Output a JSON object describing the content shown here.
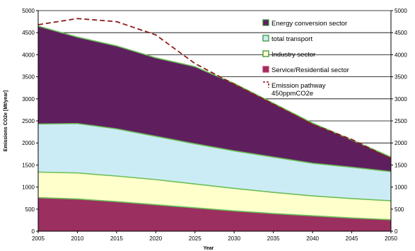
{
  "chart_data": {
    "type": "area",
    "stacked": true,
    "xlabel": "Year",
    "ylabel": "Emissions CO2e [Mt/year]",
    "x": [
      2005,
      2010,
      2015,
      2020,
      2025,
      2030,
      2035,
      2040,
      2045,
      2050
    ],
    "xticks": [
      2005,
      2010,
      2015,
      2020,
      2025,
      2030,
      2035,
      2040,
      2045,
      2050
    ],
    "ylim": [
      0,
      5000
    ],
    "yticks": [
      0,
      500,
      1000,
      1500,
      2000,
      2500,
      3000,
      3500,
      4000,
      4500,
      5000
    ],
    "secondary_yaxis": true,
    "grid": "horizontal",
    "legend_placement": "right",
    "layers_cumulative": [
      {
        "key": "service",
        "top": [
          760,
          730,
          670,
          600,
          530,
          460,
          400,
          350,
          300,
          260
        ],
        "color": "#9B2F5F"
      },
      {
        "key": "industry",
        "top": [
          1340,
          1320,
          1250,
          1170,
          1070,
          970,
          880,
          800,
          740,
          690
        ],
        "color": "#FFFFCC"
      },
      {
        "key": "transport",
        "top": [
          2430,
          2440,
          2320,
          2150,
          1980,
          1820,
          1680,
          1540,
          1450,
          1350
        ],
        "color": "#CCECF5"
      },
      {
        "key": "energy",
        "top": [
          4650,
          4400,
          4200,
          3930,
          3730,
          3350,
          2900,
          2450,
          2070,
          1680
        ],
        "color": "#5F1F5F"
      }
    ],
    "pathway": {
      "key": "pathway",
      "values": [
        4680,
        4820,
        4750,
        4450,
        3800,
        3330,
        2880,
        2420,
        2080,
        1640
      ],
      "color": "#8B1A1A"
    },
    "boundary_color": "#6BBF59",
    "legend": [
      {
        "key": "energy",
        "label": "Energy conversion sector",
        "swatch_fill": "#5F1F5F",
        "swatch_border": "#2E8B2E"
      },
      {
        "key": "transport",
        "label": "total transport",
        "swatch_fill": "#CCECF5",
        "swatch_border": "#2E8B2E"
      },
      {
        "key": "industry",
        "label": "Industry sector",
        "swatch_fill": "#FFFFCC",
        "swatch_border": "#2E8B2E"
      },
      {
        "key": "service",
        "label": "Service/Residential sector",
        "swatch_fill": "#9B2F5F",
        "swatch_border": "#CC3366"
      },
      {
        "key": "pathway",
        "label": "Emission pathway",
        "label2": "450ppmCO2e",
        "swatch_fill": "none",
        "swatch_border": "#8B1A1A"
      }
    ]
  }
}
